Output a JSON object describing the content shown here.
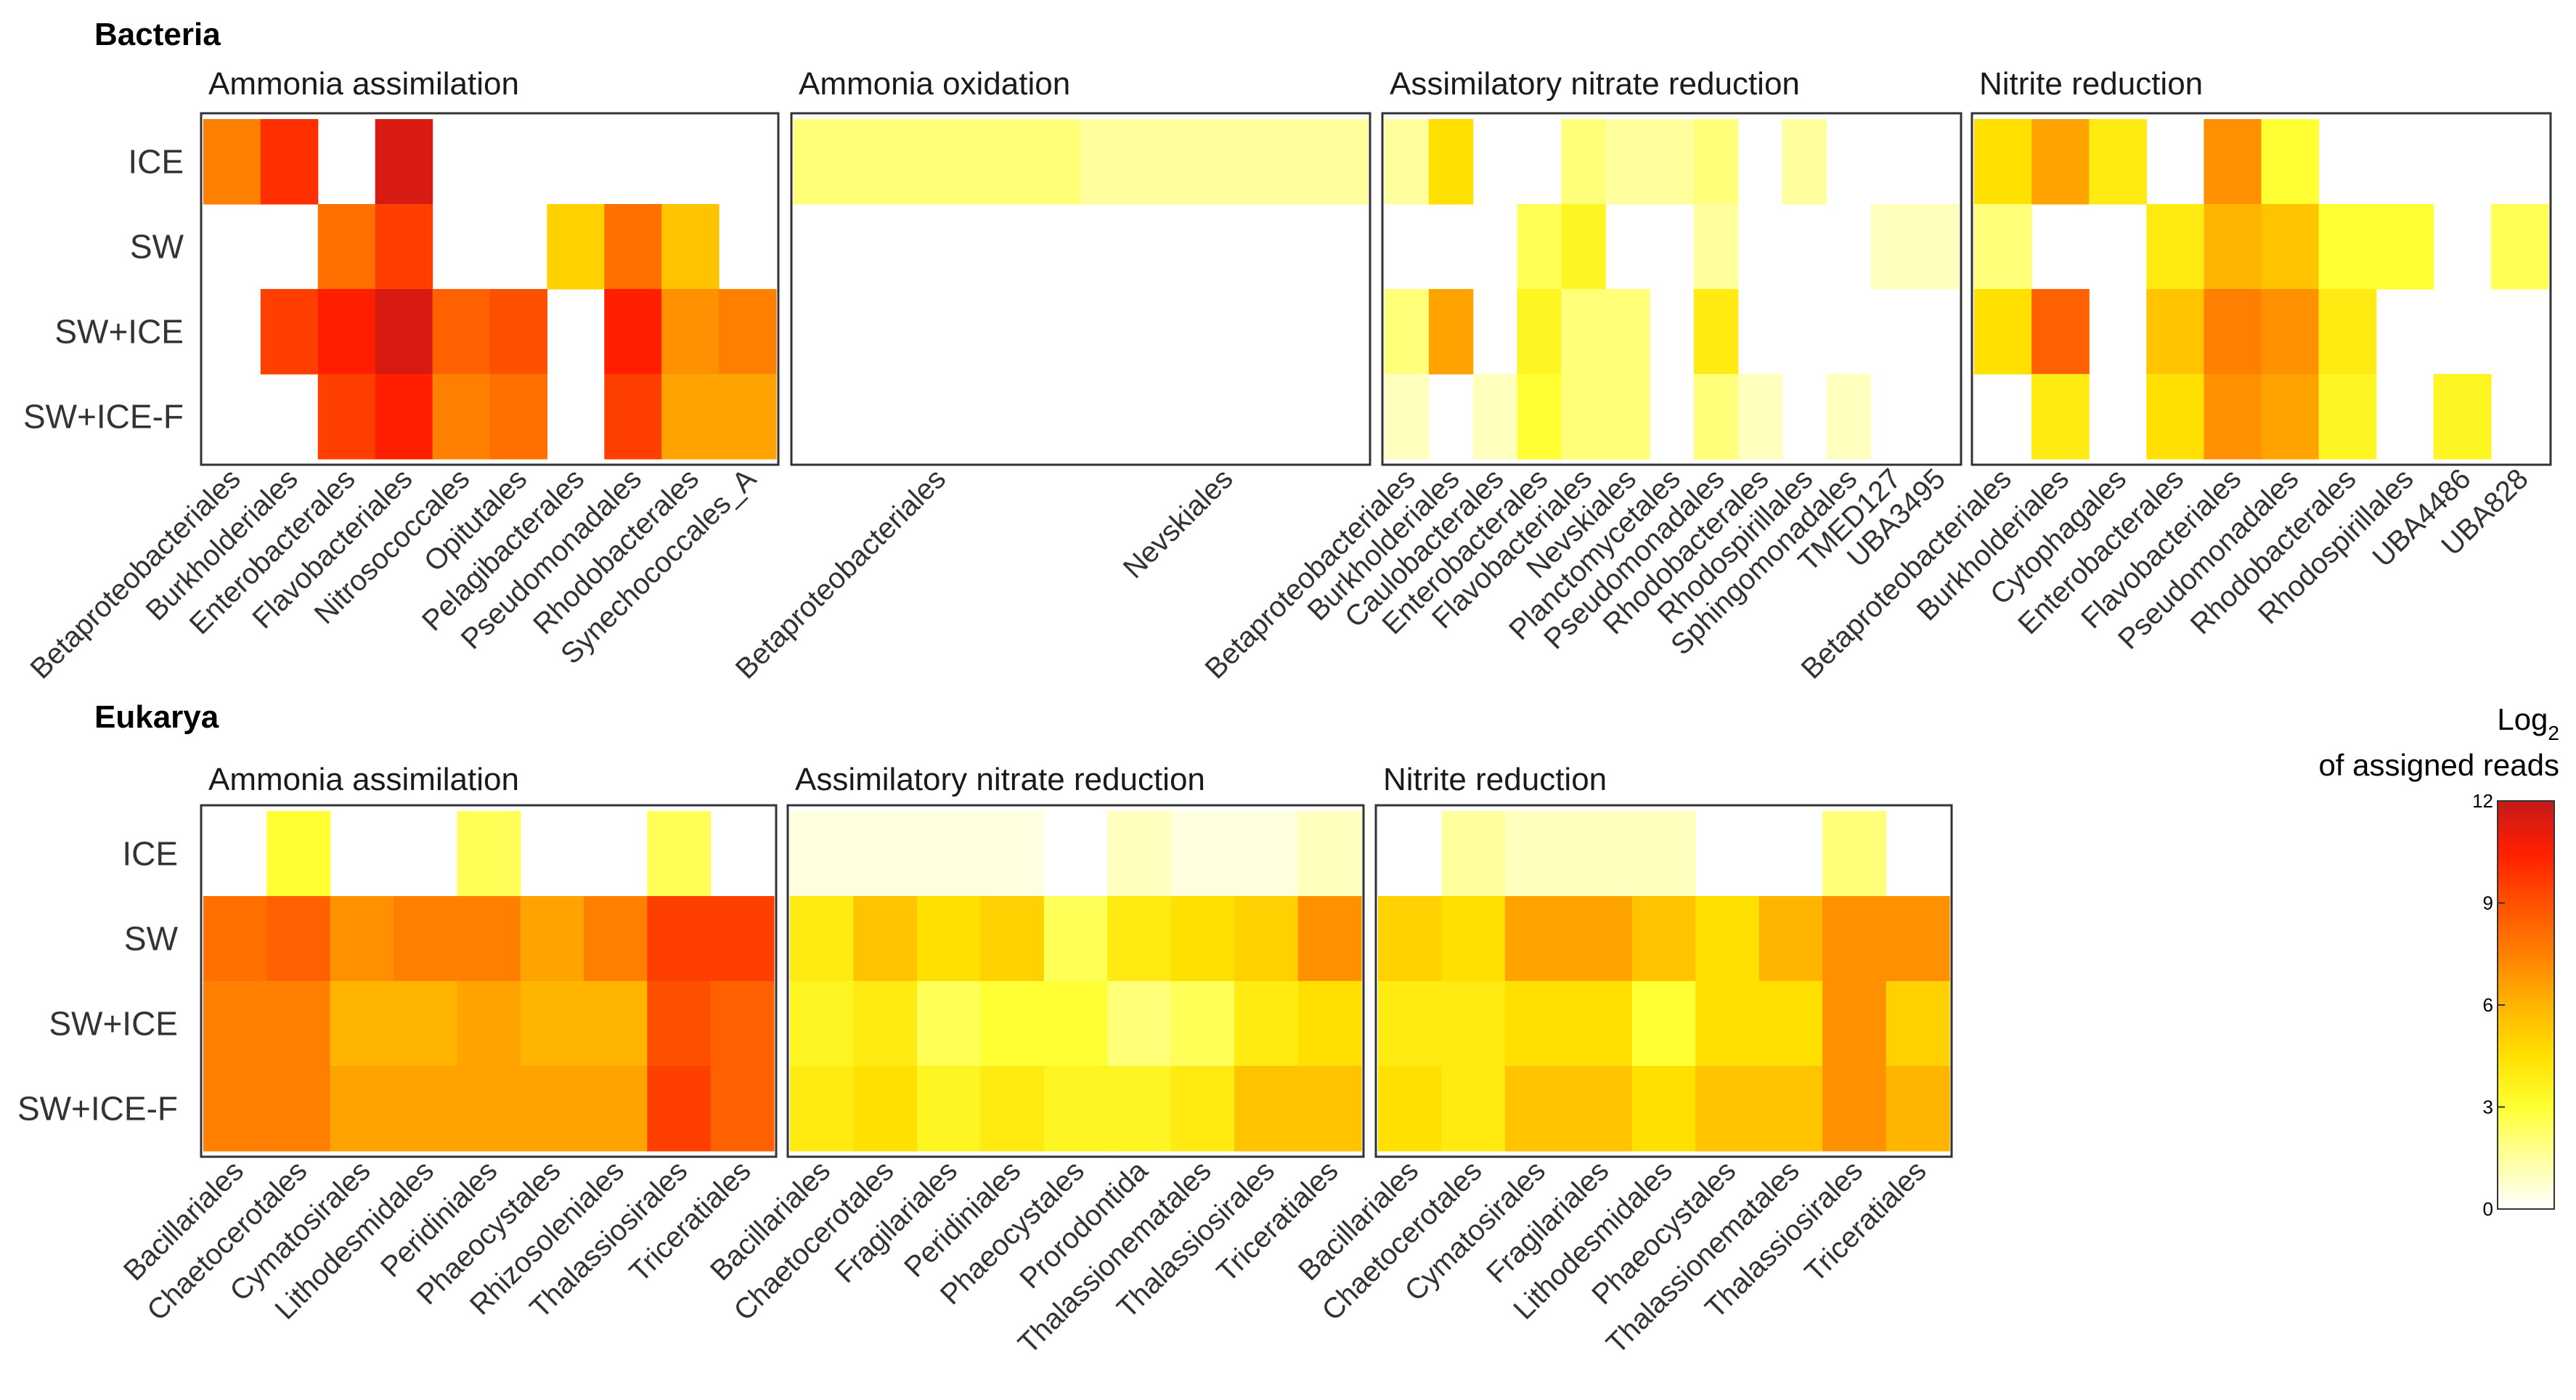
{
  "chart_data": {
    "type": "heatmap",
    "colorbar": {
      "title_main": "Log",
      "title_sub": "2",
      "title_line2": "of assigned reads",
      "ticks": [
        0,
        3,
        6,
        9,
        12
      ],
      "tick_labels": [
        "0",
        "3",
        "6",
        "9",
        "12"
      ],
      "range": [
        0,
        12
      ],
      "colors": [
        "#ffffff",
        "#ffff9e",
        "#ffff33",
        "#ffe000",
        "#ffb400",
        "#ff8000",
        "#ff5000",
        "#ff1e00",
        "#c41a1a"
      ]
    },
    "row_labels": [
      "ICE",
      "SW",
      "SW+ICE",
      "SW+ICE-F"
    ],
    "sections": [
      {
        "title": "Bacteria",
        "panels": [
          {
            "title": "Ammonia assimilation",
            "columns": [
              "Betaproteobacteriales",
              "Burkholderiales",
              "Enterobacterales",
              "Flavobacteriales",
              "Nitrosococcales",
              "Opitutales",
              "Pelagibacterales",
              "Pseudomonadales",
              "Rhodobacterales",
              "Synechococcales_A"
            ],
            "values": [
              [
                7.5,
                10,
                0,
                11.5,
                0,
                0,
                0,
                0,
                0,
                0
              ],
              [
                0,
                0,
                8,
                9.5,
                0,
                0,
                5,
                8,
                5.5,
                0
              ],
              [
                0,
                9.5,
                10.5,
                11.5,
                8.5,
                9,
                0,
                10.5,
                7,
                7.5
              ],
              [
                0,
                0,
                9.5,
                10.5,
                7.5,
                8,
                0,
                9.5,
                6.5,
                6.5
              ]
            ]
          },
          {
            "title": "Ammonia oxidation",
            "columns": [
              "Betaproteobacteriales",
              "Nevskiales"
            ],
            "values": [
              [
                2,
                1.5
              ],
              [
                0,
                0
              ],
              [
                0,
                0
              ],
              [
                0,
                0
              ]
            ]
          },
          {
            "title": "Assimilatory nitrate reduction",
            "columns": [
              "Betaproteobacteriales",
              "Burkholderiales",
              "Caulobacterales",
              "Enterobacterales",
              "Flavobacteriales",
              "Nevskiales",
              "Planctomycetales",
              "Pseudomonadales",
              "Rhodobacterales",
              "Rhodospirillales",
              "Sphingomonadales",
              "TMED127",
              "UBA3495"
            ],
            "values": [
              [
                1.5,
                4.5,
                0,
                0,
                2,
                1.5,
                1.5,
                2,
                0,
                1.5,
                0,
                0,
                0
              ],
              [
                0,
                0,
                0,
                2.5,
                3.5,
                0,
                0,
                1.5,
                0,
                0,
                0,
                1,
                1
              ],
              [
                2,
                6.5,
                0,
                3.5,
                2,
                2,
                0,
                4,
                0,
                0,
                0,
                0,
                0
              ],
              [
                1,
                0,
                1,
                3,
                2,
                2,
                0,
                2,
                1,
                0,
                1,
                0,
                0
              ]
            ]
          },
          {
            "title": "Nitrite reduction",
            "columns": [
              "Betaproteobacteriales",
              "Burkholderiales",
              "Cytophagales",
              "Enterobacterales",
              "Flavobacteriales",
              "Pseudomonadales",
              "Rhodobacterales",
              "Rhodospirillales",
              "UBA4486",
              "UBA828"
            ],
            "values": [
              [
                4.5,
                6.5,
                4,
                0,
                7,
                3,
                0,
                0,
                0,
                0
              ],
              [
                2,
                0,
                0,
                4,
                6,
                5.5,
                3,
                3,
                0,
                2.5
              ],
              [
                4.5,
                8.5,
                0,
                5.5,
                7.5,
                7,
                4,
                0,
                0,
                0
              ],
              [
                0,
                4,
                0,
                4.5,
                7,
                6.5,
                3.5,
                0,
                3.5,
                0
              ]
            ]
          }
        ]
      },
      {
        "title": "Eukarya",
        "panels": [
          {
            "title": "Ammonia assimilation",
            "columns": [
              "Bacillariales",
              "Chaetocerotales",
              "Cymatosirales",
              "Lithodesmidales",
              "Peridiniales",
              "Phaeocystales",
              "Rhizosoleniales",
              "Thalassiosirales",
              "Triceratiales"
            ],
            "values": [
              [
                0,
                3,
                0,
                0,
                2.5,
                0,
                0,
                2.5,
                0
              ],
              [
                8,
                8.5,
                7,
                7.5,
                7.5,
                6.5,
                7.5,
                9.5,
                9.5
              ],
              [
                7.5,
                7.5,
                6,
                6,
                6.5,
                6,
                6,
                9,
                8.5
              ],
              [
                7.5,
                7.5,
                6.5,
                6.5,
                6.5,
                6.5,
                6.5,
                9.5,
                8.5
              ]
            ]
          },
          {
            "title": "Assimilatory nitrate reduction",
            "columns": [
              "Bacillariales",
              "Chaetocerotales",
              "Fragilariales",
              "Peridiniales",
              "Phaeocystales",
              "Prorodontida",
              "Thalassionematales",
              "Thalassiosirales",
              "Triceratiales"
            ],
            "values": [
              [
                0.5,
                0.5,
                0.5,
                0.5,
                0,
                1,
                0.5,
                0.5,
                1
              ],
              [
                4,
                5.5,
                4.5,
                5,
                2.5,
                4,
                4.5,
                5,
                7
              ],
              [
                3.5,
                4,
                2.5,
                3,
                3,
                2,
                2.5,
                4,
                4.5
              ],
              [
                4,
                4.5,
                3.5,
                4,
                3.5,
                3.5,
                4,
                5.5,
                5.5
              ]
            ]
          },
          {
            "title": "Nitrite reduction",
            "columns": [
              "Bacillariales",
              "Chaetocerotales",
              "Cymatosirales",
              "Fragilariales",
              "Lithodesmidales",
              "Phaeocystales",
              "Thalassionematales",
              "Thalassiosirales",
              "Triceratiales"
            ],
            "values": [
              [
                0,
                1.5,
                1,
                1,
                1,
                0,
                0,
                2,
                0
              ],
              [
                5,
                4.5,
                6.5,
                6.5,
                5.5,
                4.5,
                6,
                7,
                7
              ],
              [
                4,
                4,
                4.5,
                4.5,
                3,
                4.5,
                4.5,
                7,
                5
              ],
              [
                4.5,
                4,
                5.5,
                5.5,
                4.5,
                5.5,
                5.5,
                7,
                6
              ]
            ]
          }
        ]
      }
    ]
  }
}
